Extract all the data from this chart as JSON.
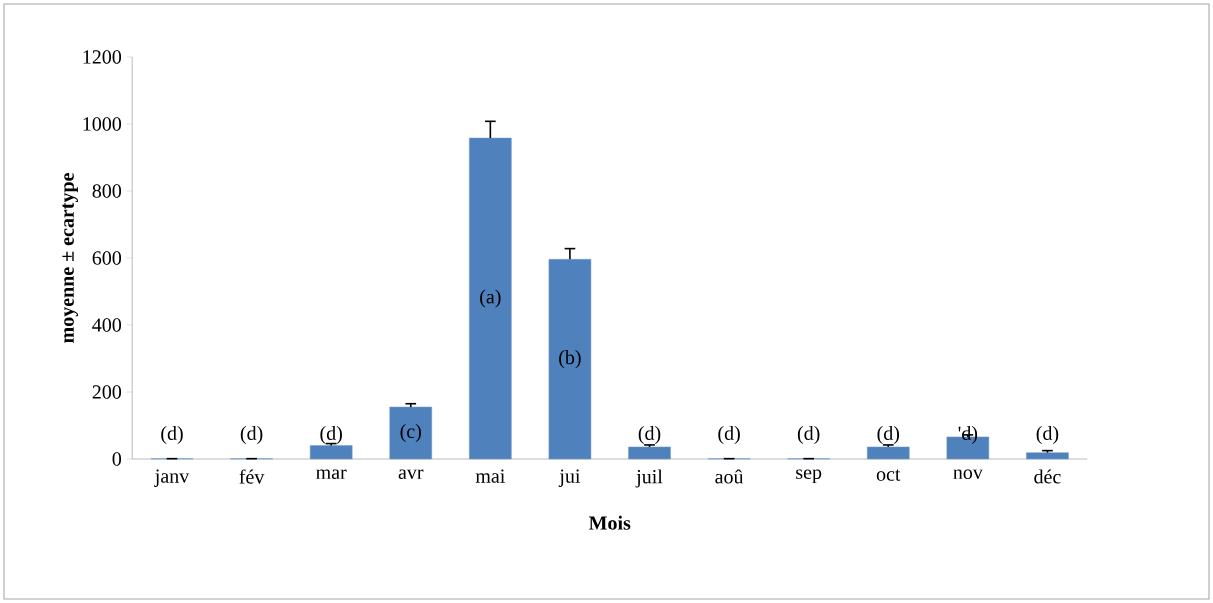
{
  "chart_data": {
    "type": "bar",
    "xlabel": "Mois",
    "ylabel": "moyenne ± ecartype",
    "categories": [
      "janv",
      "fév",
      "mar",
      "avr",
      "mai",
      "jui",
      "juil",
      "aoû",
      "sep",
      "oct",
      "nov",
      "déc"
    ],
    "values": [
      1,
      1,
      40,
      155,
      958,
      596,
      36,
      1,
      1,
      36,
      66,
      19
    ],
    "errors": [
      null,
      null,
      6,
      10,
      50,
      32,
      6,
      null,
      null,
      6,
      6,
      6
    ],
    "color": "#4f81bd",
    "ylim": [
      0,
      1200
    ],
    "yticks": [
      0,
      200,
      400,
      600,
      800,
      1000,
      1200
    ],
    "annotations": [
      "(d)",
      "(d)",
      "(d)",
      "(c)",
      "(a)",
      "(b)",
      "(d)",
      "(d)",
      "(d)",
      "(d)",
      "'d)",
      "(d)"
    ]
  }
}
